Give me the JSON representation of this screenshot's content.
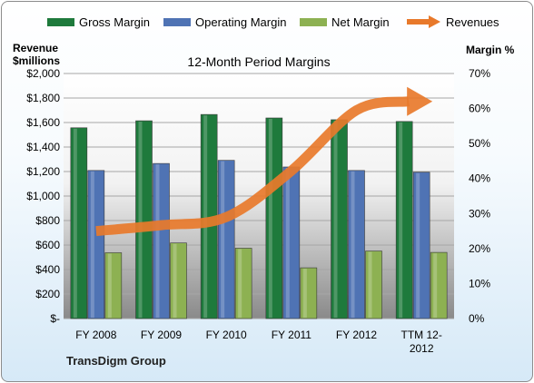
{
  "colors": {
    "gross": "#1e7a3c",
    "operating": "#4f73b4",
    "net": "#8db152",
    "revenue": "#e8792b",
    "plot_top": "#ffffff",
    "plot_bottom": "#8a8a8a"
  },
  "legend": {
    "gross_label": "Gross Margin",
    "operating_label": "Operating Margin",
    "net_label": "Net Margin",
    "revenue_label": "Revenues"
  },
  "axes": {
    "left_title_line1": "Revenue",
    "left_title_line2": "$millions",
    "right_title": "Margin %"
  },
  "chart_title": "12-Month Period Margins",
  "footer": "TransDigm Group",
  "chart_data": {
    "type": "bar",
    "title": "12-Month Period Margins",
    "categories": [
      "FY 2008",
      "FY 2009",
      "FY 2010",
      "FY 2011",
      "FY 2012",
      "TTM 12-2012"
    ],
    "category_labels": [
      [
        "FY 2008"
      ],
      [
        "FY 2009"
      ],
      [
        "FY 2010"
      ],
      [
        "FY 2011"
      ],
      [
        "FY 2012"
      ],
      [
        "TTM 12-",
        "2012"
      ]
    ],
    "series": [
      {
        "name": "Gross Margin",
        "axis": "right",
        "values": [
          54.5,
          56.5,
          58.3,
          57.3,
          56.8,
          56.3
        ]
      },
      {
        "name": "Operating Margin",
        "axis": "right",
        "values": [
          42.3,
          44.3,
          45.2,
          43.3,
          42.3,
          41.8
        ]
      },
      {
        "name": "Net Margin",
        "axis": "right",
        "values": [
          18.8,
          21.6,
          20.1,
          14.5,
          19.3,
          18.9
        ]
      },
      {
        "name": "Revenues",
        "type": "line",
        "axis": "left",
        "values": [
          714,
          762,
          828,
          1206,
          1700,
          1780
        ]
      }
    ],
    "ylabel_left": "Revenue $millions",
    "ylim_left": [
      0,
      2000
    ],
    "yticks_left": [
      "$-",
      "$200",
      "$400",
      "$600",
      "$800",
      "$1,000",
      "$1,200",
      "$1,400",
      "$1,600",
      "$1,800",
      "$2,000"
    ],
    "ylabel_right": "Margin %",
    "ylim_right": [
      0,
      70
    ],
    "yticks_right": [
      "0%",
      "10%",
      "20%",
      "30%",
      "40%",
      "50%",
      "60%",
      "70%"
    ],
    "legend_position": "top",
    "grid": true
  }
}
